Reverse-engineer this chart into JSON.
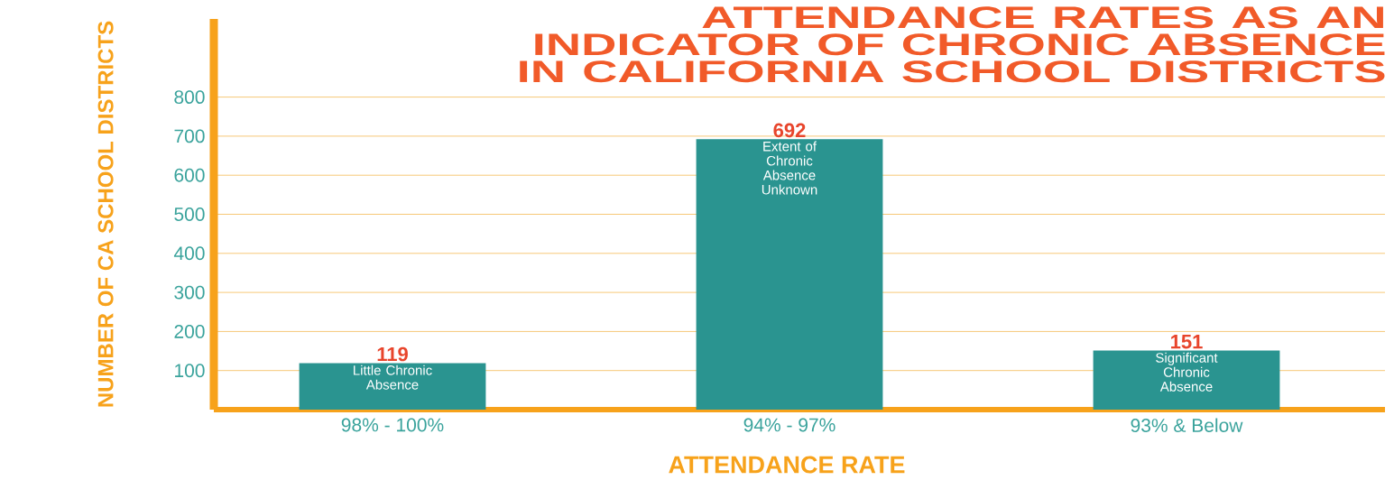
{
  "chart_data": {
    "type": "bar",
    "title": "ATTENDANCE RATES AS AN INDICATOR OF CHRONIC ABSENCE IN CALIFORNIA SCHOOL DISTRICTS",
    "xlabel": "ATTENDANCE RATE",
    "ylabel": "NUMBER OF CA SCHOOL DISTRICTS",
    "categories": [
      "98% - 100%",
      "94% - 97%",
      "93% & Below"
    ],
    "values": [
      119,
      692,
      151
    ],
    "color": "#2a9490",
    "ylim": [
      0,
      1000
    ],
    "yticks": [
      100,
      200,
      300,
      400,
      500,
      600,
      700,
      800
    ],
    "grid": "y",
    "data_labels": true,
    "annotations": [
      {
        "text": "Little Chronic Absence",
        "x": "98% - 100%",
        "y": 119
      },
      {
        "text": "Extent of Chronic Absence Unknown",
        "x": "94% - 97%",
        "y": 692
      },
      {
        "text": "Significant Chronic Absence",
        "x": "93% & Below",
        "y": 151
      }
    ]
  }
}
